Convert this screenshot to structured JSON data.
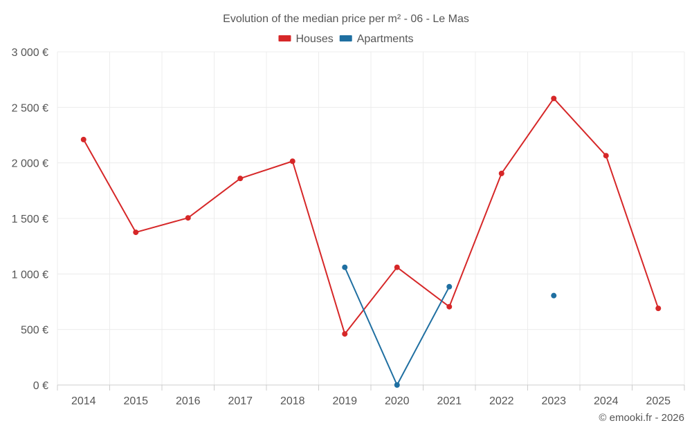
{
  "chart_data": {
    "type": "line",
    "title": "Evolution of the median price per m² - 06 - Le Mas",
    "categories": [
      "2014",
      "2015",
      "2016",
      "2017",
      "2018",
      "2019",
      "2020",
      "2021",
      "2022",
      "2023",
      "2024",
      "2025"
    ],
    "ylim": [
      0,
      3000
    ],
    "yticks": [
      0,
      500,
      1000,
      1500,
      2000,
      2500,
      3000
    ],
    "ytick_labels": [
      "0 €",
      "500 €",
      "1 000 €",
      "1 500 €",
      "2 000 €",
      "2 500 €",
      "3 000 €"
    ],
    "grid": true,
    "legend_position": "top-center",
    "series": [
      {
        "name": "Houses",
        "color": "#d62728",
        "values": [
          2210,
          1375,
          1505,
          1860,
          2015,
          460,
          1060,
          705,
          1905,
          2580,
          2065,
          690
        ]
      },
      {
        "name": "Apartments",
        "color": "#1f6fa1",
        "values": [
          null,
          null,
          null,
          null,
          null,
          1060,
          0,
          885,
          null,
          805,
          null,
          null
        ]
      }
    ],
    "credit": "© emooki.fr - 2026"
  }
}
